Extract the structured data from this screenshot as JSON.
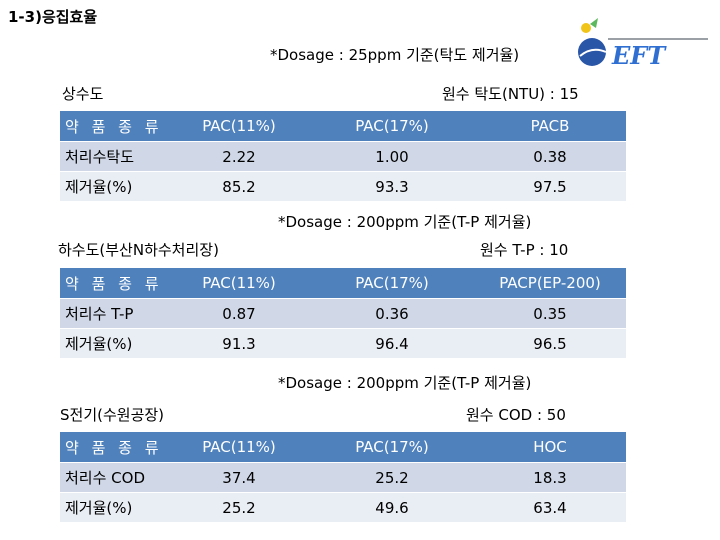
{
  "page": {
    "title": "1-3)응집효율"
  },
  "logo": {
    "text": "EFT"
  },
  "sections": [
    {
      "dosage_note": "*Dosage : 25ppm 기준(탁도 제거율)",
      "site": "상수도",
      "raw": "원수 탁도(NTU) : 15",
      "headers": [
        "약 품 종 류",
        "PAC(11%)",
        "PAC(17%)",
        "PACB"
      ],
      "rows": [
        [
          "처리수탁도",
          "2.22",
          "1.00",
          "0.38"
        ],
        [
          "제거율(%)",
          "85.2",
          "93.3",
          "97.5"
        ]
      ]
    },
    {
      "dosage_note": "*Dosage : 200ppm 기준(T-P 제거율)",
      "site": "하수도(부산N하수처리장)",
      "raw": "원수 T-P : 10",
      "headers": [
        "약 품 종 류",
        "PAC(11%)",
        "PAC(17%)",
        "PACP(EP-200)"
      ],
      "rows": [
        [
          "처리수 T-P",
          "0.87",
          "0.36",
          "0.35"
        ],
        [
          "제거율(%)",
          "91.3",
          "96.4",
          "96.5"
        ]
      ]
    },
    {
      "dosage_note": "*Dosage : 200ppm 기준(T-P 제거율)",
      "site": "S전기(수원공장)",
      "raw": "원수 COD : 50",
      "headers": [
        "약 품 종 류",
        "PAC(11%)",
        "PAC(17%)",
        "HOC"
      ],
      "rows": [
        [
          "처리수 COD",
          "37.4",
          "25.2",
          "18.3"
        ],
        [
          "제거율(%)",
          "25.2",
          "49.6",
          "63.4"
        ]
      ]
    }
  ]
}
